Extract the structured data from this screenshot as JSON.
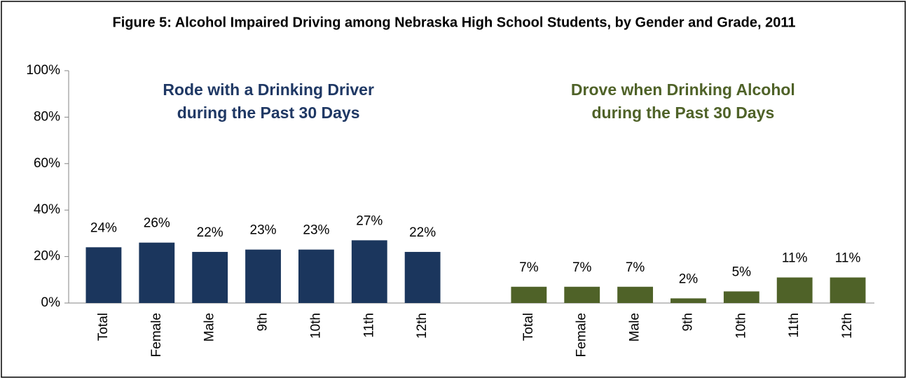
{
  "chart_data": {
    "type": "bar",
    "title": "Figure 5: Alcohol Impaired Driving among Nebraska High School Students, by Gender and Grade, 2011",
    "annotations": [
      {
        "lines": [
          "Rode with a Drinking Driver",
          "during the Past 30 Days"
        ],
        "color": "#1f3864"
      },
      {
        "lines": [
          "Drove when Drinking Alcohol",
          "during the Past 30 Days"
        ],
        "color": "#4f6228"
      }
    ],
    "categories": [
      "Total",
      "Female",
      "Male",
      "9th",
      "10th",
      "11th",
      "12th",
      null,
      "Total",
      "Female",
      "Male",
      "9th",
      "10th",
      "11th",
      "12th"
    ],
    "series": [
      {
        "color": "#1b365d",
        "values": [
          24,
          26,
          22,
          23,
          23,
          27,
          22,
          null,
          null,
          null,
          null,
          null,
          null,
          null,
          null
        ],
        "value_labels": [
          "24%",
          "26%",
          "22%",
          "23%",
          "23%",
          "27%",
          "22%",
          null,
          null,
          null,
          null,
          null,
          null,
          null,
          null
        ]
      },
      {
        "color": "#4f6228",
        "values": [
          null,
          null,
          null,
          null,
          null,
          null,
          null,
          null,
          7,
          7,
          7,
          2,
          5,
          11,
          11
        ],
        "value_labels": [
          null,
          null,
          null,
          null,
          null,
          null,
          null,
          null,
          "7%",
          "7%",
          "7%",
          "2%",
          "5%",
          "11%",
          "11%"
        ]
      }
    ],
    "ylim": [
      0,
      100
    ],
    "yticks": [
      {
        "value": 0,
        "label": "0%"
      },
      {
        "value": 20,
        "label": "20%"
      },
      {
        "value": 40,
        "label": "40%"
      },
      {
        "value": 60,
        "label": "60%"
      },
      {
        "value": 80,
        "label": "80%"
      },
      {
        "value": 100,
        "label": "100%"
      }
    ]
  }
}
